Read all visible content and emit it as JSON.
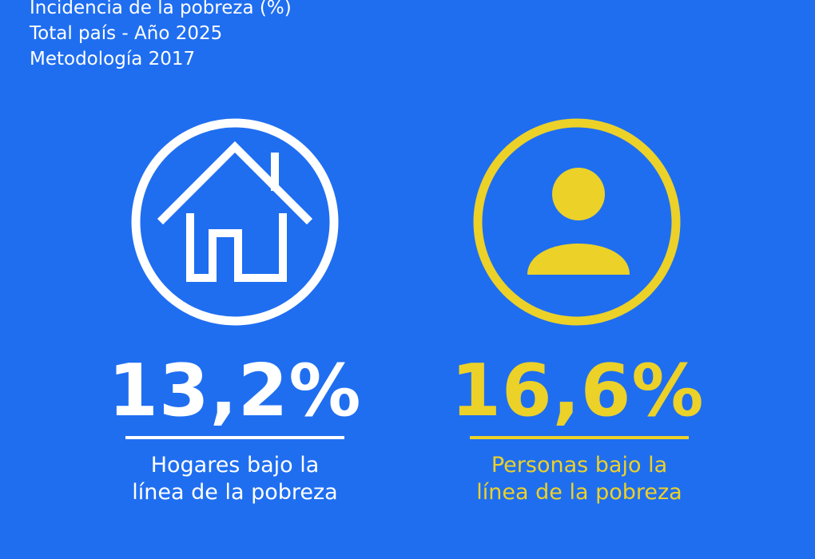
{
  "colors": {
    "background": "#1f6ef0",
    "white": "#ffffff",
    "accent_yellow": "#ecd128"
  },
  "header": {
    "line1": "Incidencia de la pobreza (%)",
    "line2": "Total país - Año 2025",
    "line3": "Metodología 2017"
  },
  "hogares": {
    "icon": "house-icon",
    "value": "13,2%",
    "caption_line1": "Hogares bajo la",
    "caption_line2": "línea de la pobreza"
  },
  "personas": {
    "icon": "person-icon",
    "value": "16,6%",
    "caption_line1": "Personas bajo la",
    "caption_line2": "línea de la pobreza"
  }
}
